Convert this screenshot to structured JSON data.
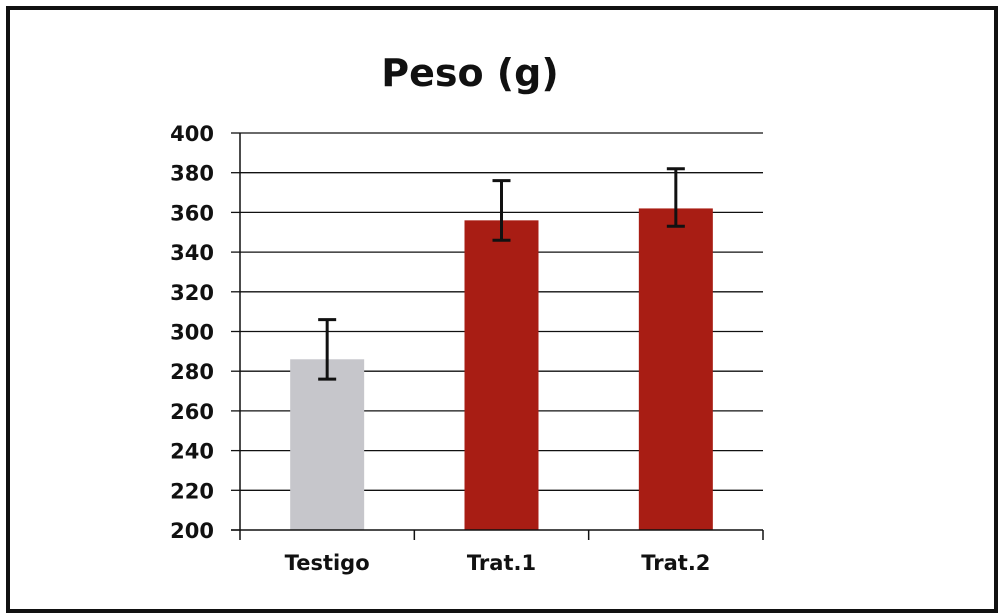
{
  "chart_data": {
    "type": "bar",
    "title": "Peso (g)",
    "xlabel": "",
    "ylabel": "",
    "categories": [
      "Testigo",
      "Trat.1",
      "Trat.2"
    ],
    "values": [
      286,
      356,
      362
    ],
    "error_low": [
      276,
      346,
      353
    ],
    "error_high": [
      306,
      376,
      382
    ],
    "ylim": [
      200,
      400
    ],
    "yticks": [
      200,
      220,
      240,
      260,
      280,
      300,
      320,
      340,
      360,
      380,
      400
    ],
    "grid": true,
    "legend": "none",
    "colors": [
      "#c6c6cb",
      "#a81d14",
      "#a81d14"
    ],
    "error_color": "#111111"
  }
}
